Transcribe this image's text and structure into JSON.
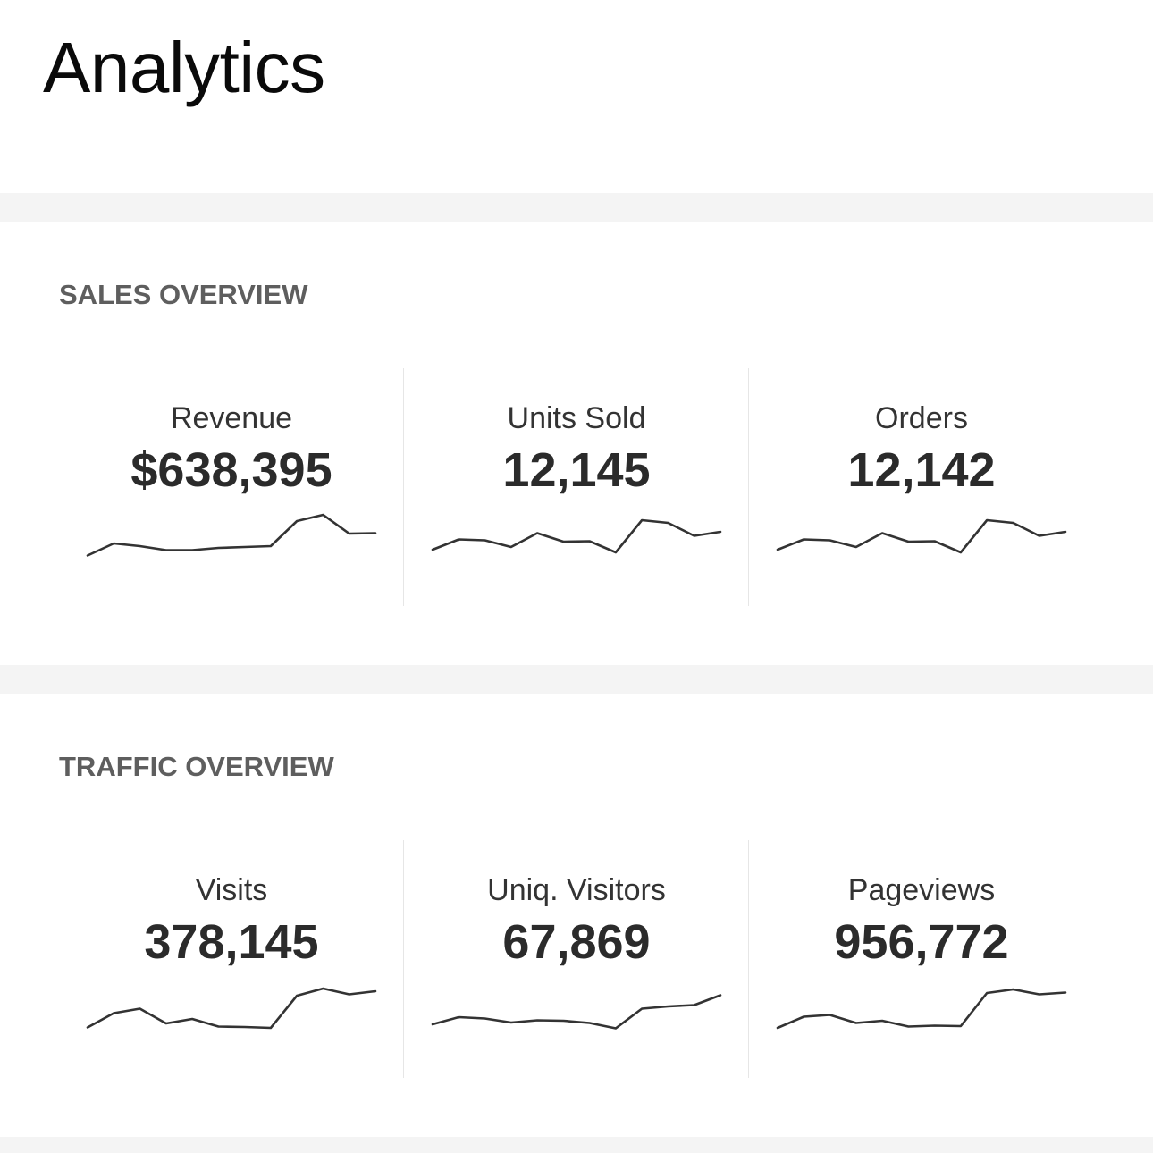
{
  "page": {
    "title": "Analytics"
  },
  "sections": [
    {
      "heading": "SALES OVERVIEW",
      "metrics": [
        {
          "label": "Revenue",
          "value": "$638,395",
          "trend": [
            0.05,
            0.32,
            0.26,
            0.17,
            0.17,
            0.22,
            0.24,
            0.26,
            0.82,
            0.96,
            0.54,
            0.55
          ]
        },
        {
          "label": "Units Sold",
          "value": "12,145",
          "trend": [
            0.18,
            0.41,
            0.39,
            0.24,
            0.55,
            0.36,
            0.37,
            0.12,
            0.84,
            0.78,
            0.49,
            0.58
          ]
        },
        {
          "label": "Orders",
          "value": "12,142",
          "trend": [
            0.18,
            0.41,
            0.39,
            0.24,
            0.55,
            0.36,
            0.37,
            0.12,
            0.84,
            0.78,
            0.49,
            0.58
          ]
        }
      ]
    },
    {
      "heading": "TRAFFIC OVERVIEW",
      "metrics": [
        {
          "label": "Visits",
          "value": "378,145",
          "trend": [
            0.05,
            0.37,
            0.47,
            0.14,
            0.24,
            0.07,
            0.06,
            0.04,
            0.76,
            0.92,
            0.79,
            0.86
          ]
        },
        {
          "label": "Uniq. Visitors",
          "value": "67,869",
          "trend": [
            0.12,
            0.28,
            0.25,
            0.16,
            0.21,
            0.2,
            0.15,
            0.03,
            0.47,
            0.52,
            0.55,
            0.77
          ]
        },
        {
          "label": "Pageviews",
          "value": "956,772",
          "trend": [
            0.04,
            0.29,
            0.33,
            0.15,
            0.2,
            0.07,
            0.09,
            0.08,
            0.82,
            0.9,
            0.79,
            0.83
          ]
        }
      ]
    }
  ]
}
